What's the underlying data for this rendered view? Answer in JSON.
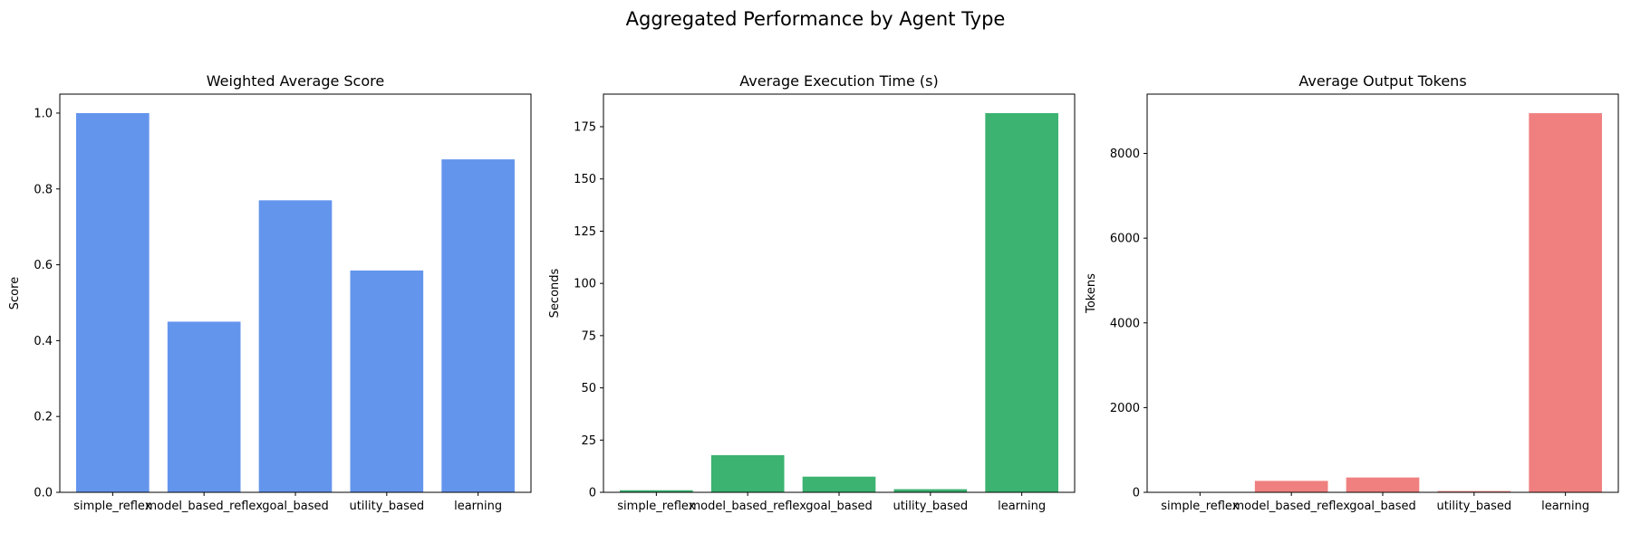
{
  "figure": {
    "suptitle": "Aggregated Performance by Agent Type"
  },
  "chart_data": [
    {
      "type": "bar",
      "title": "Weighted Average Score",
      "xlabel": "",
      "ylabel": "Score",
      "categories": [
        "simple_reflex",
        "model_based_reflex",
        "goal_based",
        "utility_based",
        "learning"
      ],
      "values": [
        1.0,
        0.45,
        0.77,
        0.585,
        0.878
      ],
      "ylim": [
        0,
        1.05
      ],
      "yticks": [
        0.0,
        0.2,
        0.4,
        0.6,
        0.8,
        1.0
      ],
      "ytick_labels": [
        "0.0",
        "0.2",
        "0.4",
        "0.6",
        "0.8",
        "1.0"
      ],
      "color": "#6495ED",
      "grid": false
    },
    {
      "type": "bar",
      "title": "Average Execution Time (s)",
      "xlabel": "",
      "ylabel": "Seconds",
      "categories": [
        "simple_reflex",
        "model_based_reflex",
        "goal_based",
        "utility_based",
        "learning"
      ],
      "values": [
        1.0,
        17.8,
        7.5,
        1.5,
        181.5
      ],
      "ylim": [
        0,
        190.6
      ],
      "yticks": [
        0,
        25,
        50,
        75,
        100,
        125,
        150,
        175
      ],
      "ytick_labels": [
        "0",
        "25",
        "50",
        "75",
        "100",
        "125",
        "150",
        "175"
      ],
      "color": "#3CB371",
      "grid": false
    },
    {
      "type": "bar",
      "title": "Average Output Tokens",
      "xlabel": "",
      "ylabel": "Tokens",
      "categories": [
        "simple_reflex",
        "model_based_reflex",
        "goal_based",
        "utility_based",
        "learning"
      ],
      "values": [
        5,
        270,
        350,
        30,
        8950
      ],
      "ylim": [
        0,
        9400
      ],
      "yticks": [
        0,
        2000,
        4000,
        6000,
        8000
      ],
      "ytick_labels": [
        "0",
        "2000",
        "4000",
        "6000",
        "8000"
      ],
      "color": "#F08080",
      "grid": false
    }
  ]
}
